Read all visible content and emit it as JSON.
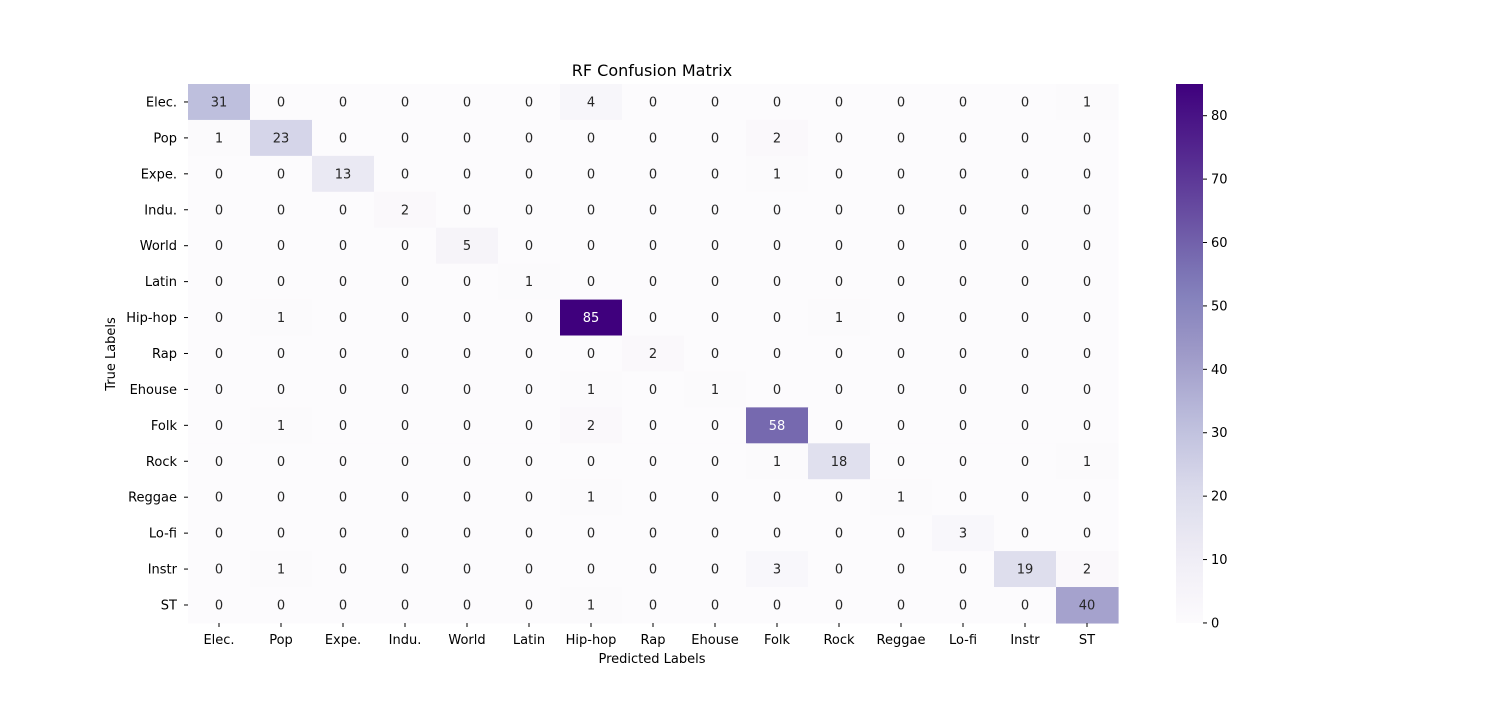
{
  "chart_data": {
    "type": "heatmap",
    "title": "RF Confusion Matrix",
    "xlabel": "Predicted Labels",
    "ylabel": "True Labels",
    "x_categories": [
      "Elec.",
      "Pop",
      "Expe.",
      "Indu.",
      "World",
      "Latin",
      "Hip-hop",
      "Rap",
      "Ehouse",
      "Folk",
      "Rock",
      "Reggae",
      "Lo-fi",
      "Instr",
      "ST"
    ],
    "y_categories": [
      "Elec.",
      "Pop",
      "Expe.",
      "Indu.",
      "World",
      "Latin",
      "Hip-hop",
      "Rap",
      "Ehouse",
      "Folk",
      "Rock",
      "Reggae",
      "Lo-fi",
      "Instr",
      "ST"
    ],
    "matrix": [
      [
        31,
        0,
        0,
        0,
        0,
        0,
        4,
        0,
        0,
        0,
        0,
        0,
        0,
        0,
        1
      ],
      [
        1,
        23,
        0,
        0,
        0,
        0,
        0,
        0,
        0,
        2,
        0,
        0,
        0,
        0,
        0
      ],
      [
        0,
        0,
        13,
        0,
        0,
        0,
        0,
        0,
        0,
        1,
        0,
        0,
        0,
        0,
        0
      ],
      [
        0,
        0,
        0,
        2,
        0,
        0,
        0,
        0,
        0,
        0,
        0,
        0,
        0,
        0,
        0
      ],
      [
        0,
        0,
        0,
        0,
        5,
        0,
        0,
        0,
        0,
        0,
        0,
        0,
        0,
        0,
        0
      ],
      [
        0,
        0,
        0,
        0,
        0,
        1,
        0,
        0,
        0,
        0,
        0,
        0,
        0,
        0,
        0
      ],
      [
        0,
        1,
        0,
        0,
        0,
        0,
        85,
        0,
        0,
        0,
        1,
        0,
        0,
        0,
        0
      ],
      [
        0,
        0,
        0,
        0,
        0,
        0,
        0,
        2,
        0,
        0,
        0,
        0,
        0,
        0,
        0
      ],
      [
        0,
        0,
        0,
        0,
        0,
        0,
        1,
        0,
        1,
        0,
        0,
        0,
        0,
        0,
        0
      ],
      [
        0,
        1,
        0,
        0,
        0,
        0,
        2,
        0,
        0,
        58,
        0,
        0,
        0,
        0,
        0
      ],
      [
        0,
        0,
        0,
        0,
        0,
        0,
        0,
        0,
        0,
        1,
        18,
        0,
        0,
        0,
        1
      ],
      [
        0,
        0,
        0,
        0,
        0,
        0,
        1,
        0,
        0,
        0,
        0,
        1,
        0,
        0,
        0
      ],
      [
        0,
        0,
        0,
        0,
        0,
        0,
        0,
        0,
        0,
        0,
        0,
        0,
        3,
        0,
        0
      ],
      [
        0,
        1,
        0,
        0,
        0,
        0,
        0,
        0,
        0,
        3,
        0,
        0,
        0,
        19,
        2
      ],
      [
        0,
        0,
        0,
        0,
        0,
        0,
        1,
        0,
        0,
        0,
        0,
        0,
        0,
        0,
        40
      ]
    ],
    "colormap": "Purples",
    "color_range": [
      0,
      85
    ],
    "colorbar_ticks": [
      0,
      10,
      20,
      30,
      40,
      50,
      60,
      70,
      80
    ],
    "annotated": true,
    "grid": false
  }
}
